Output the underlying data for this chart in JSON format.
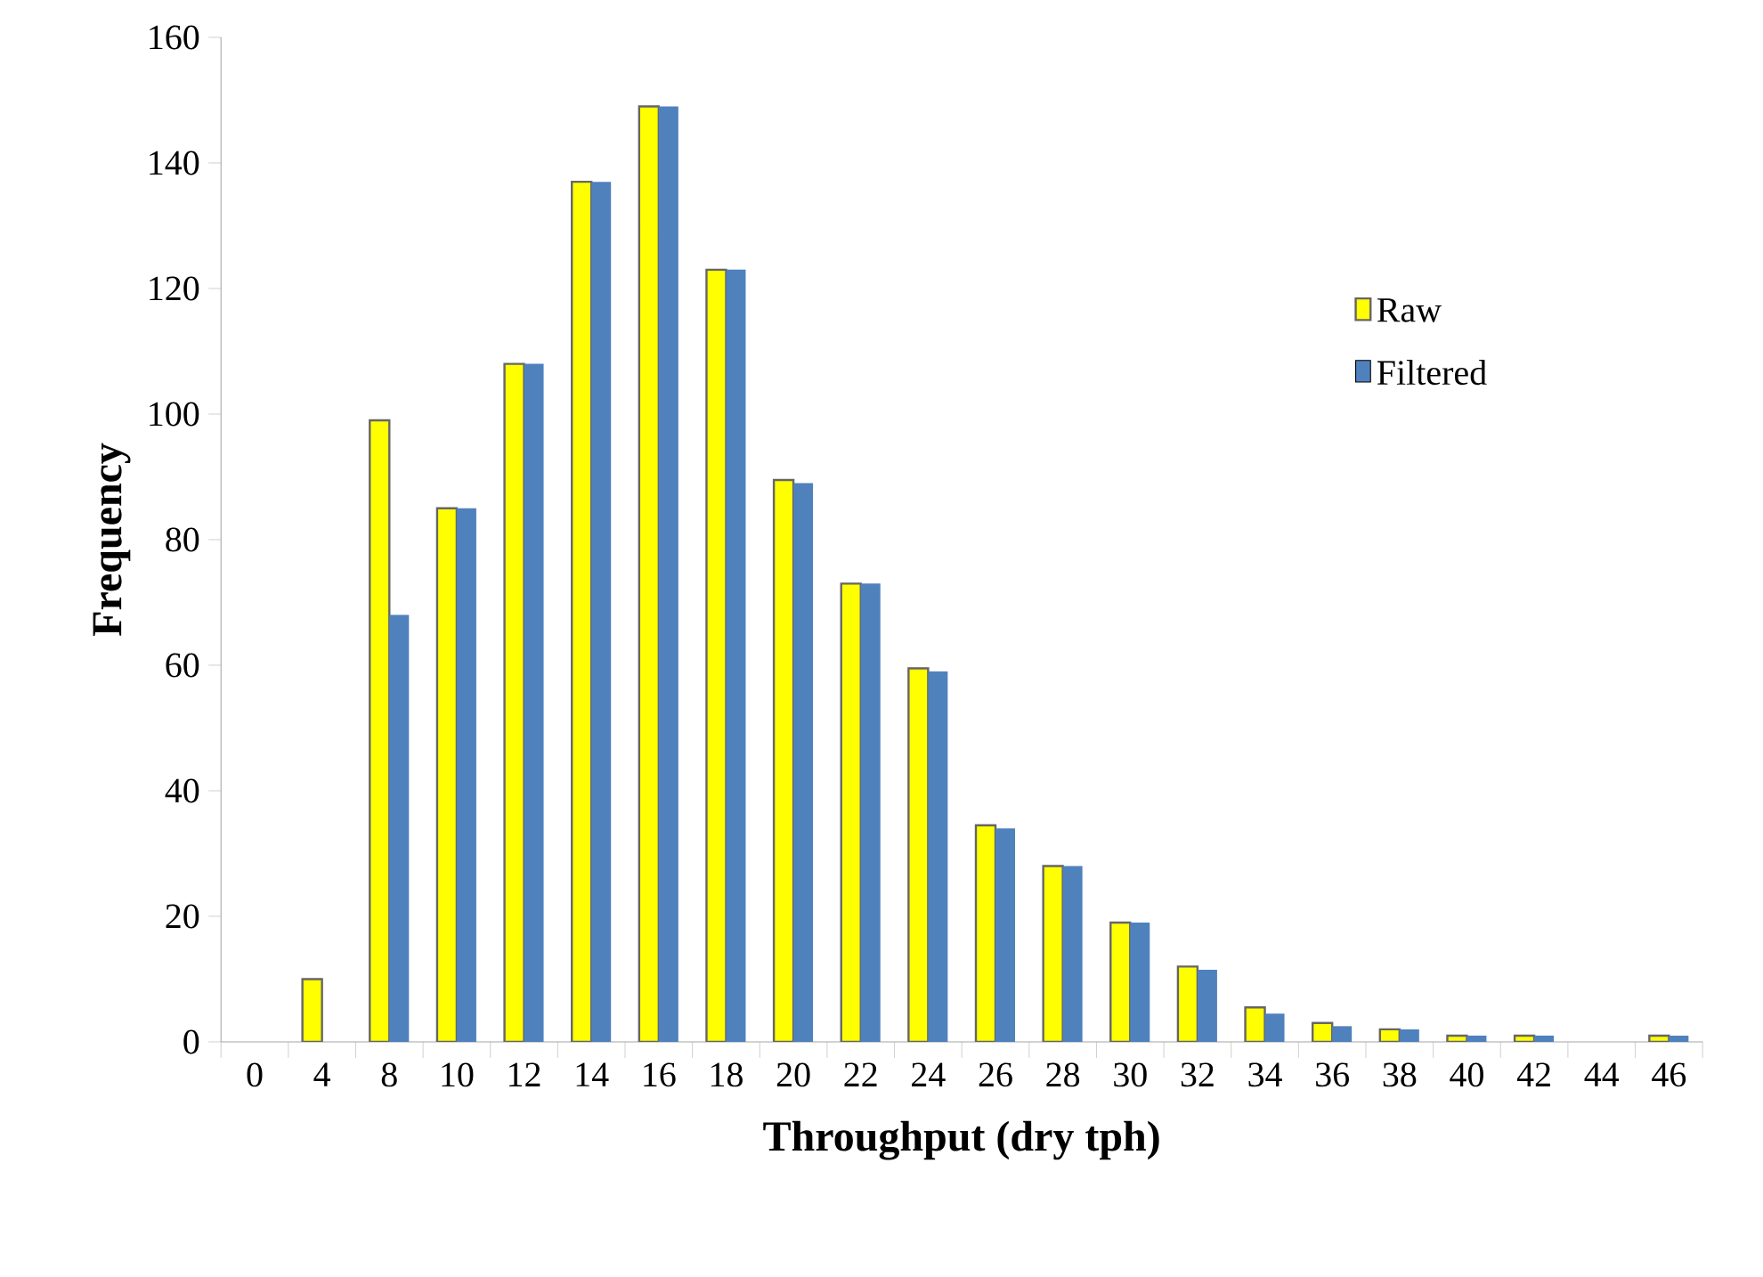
{
  "chart_data": {
    "type": "bar",
    "xlabel": "Throughput (dry tph)",
    "ylabel": "Frequency",
    "categories": [
      "0",
      "4",
      "8",
      "10",
      "12",
      "14",
      "16",
      "18",
      "20",
      "22",
      "24",
      "26",
      "28",
      "30",
      "32",
      "34",
      "36",
      "38",
      "40",
      "42",
      "44",
      "46"
    ],
    "series": [
      {
        "name": "Raw",
        "color": "#ffff00",
        "values": [
          0,
          10,
          99,
          85,
          108,
          137,
          149,
          123,
          89.5,
          73,
          59.5,
          34.5,
          28,
          19,
          12,
          5.5,
          3,
          2,
          1,
          1,
          0,
          1
        ]
      },
      {
        "name": "Filtered",
        "color": "#4f81bd",
        "values": [
          0,
          0,
          68,
          85,
          108,
          137,
          149,
          123,
          89,
          73,
          59,
          34,
          28,
          19,
          11.5,
          4.5,
          2.5,
          2,
          1,
          1,
          0,
          1
        ]
      }
    ],
    "ylim": [
      0,
      160
    ],
    "yticks": [
      0,
      20,
      40,
      60,
      80,
      100,
      120,
      140,
      160
    ],
    "grid": false,
    "legend": "right"
  }
}
